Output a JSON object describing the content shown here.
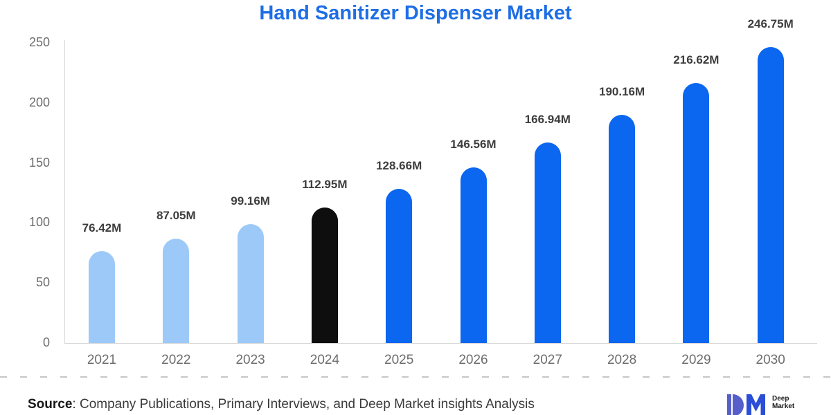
{
  "title": "Hand Sanitizer Dispenser Market",
  "chart_data": {
    "type": "bar",
    "title": "Hand Sanitizer Dispenser Market",
    "categories": [
      "2021",
      "2022",
      "2023",
      "2024",
      "2025",
      "2026",
      "2027",
      "2028",
      "2029",
      "2030"
    ],
    "values": [
      76.42,
      87.05,
      99.16,
      112.95,
      128.66,
      146.56,
      166.94,
      190.16,
      216.62,
      246.75
    ],
    "value_labels": [
      "76.42M",
      "87.05M",
      "99.16M",
      "112.95M",
      "128.66M",
      "146.56M",
      "166.94M",
      "190.16M",
      "216.62M",
      "246.75M"
    ],
    "bar_colors": [
      "#9dc9f8",
      "#9dc9f8",
      "#9dc9f8",
      "#0e0e0e",
      "#0b66f0",
      "#0b66f0",
      "#0b66f0",
      "#0b66f0",
      "#0b66f0",
      "#0b66f0"
    ],
    "xlabel": "",
    "ylabel": "",
    "ylim": [
      0,
      250
    ],
    "yticks": [
      0,
      50,
      100,
      150,
      200,
      250
    ],
    "grid": false,
    "legend_position": "none",
    "units": "M (million)"
  },
  "colors": {
    "title_blue": "#1d6ee5",
    "bar_light_blue": "#9dc9f8",
    "bar_blue": "#0b66f0",
    "bar_black": "#0e0e0e",
    "axis_line": "#d8d8d8",
    "tick_text": "#6d6d6d",
    "value_text": "#3d3d3d"
  },
  "footer": {
    "source_label": "Source",
    "source_text": ": Company Publications, Primary Interviews, and Deep Market insights Analysis",
    "logo_line1": "Deep",
    "logo_line2": "Market"
  }
}
